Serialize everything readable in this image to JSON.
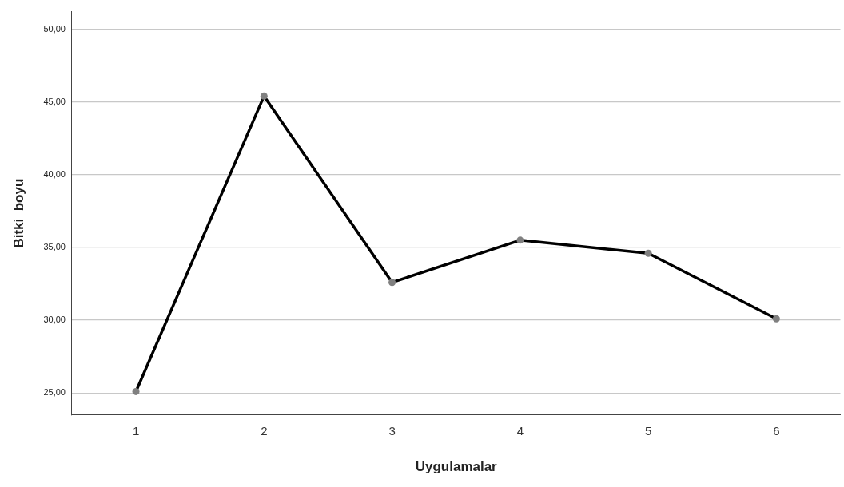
{
  "chart_data": {
    "type": "line",
    "xlabel": "Uygulamalar",
    "ylabel": "Bitki  boyu",
    "categories": [
      "1",
      "2",
      "3",
      "4",
      "5",
      "6"
    ],
    "series": [
      {
        "color": "#000000",
        "values": [
          25.1,
          45.4,
          32.6,
          35.5,
          34.6,
          30.1
        ]
      }
    ],
    "ylim": [
      23.5,
      51.2
    ],
    "yticks": [
      {
        "value": 25,
        "label": "25,00"
      },
      {
        "value": 30,
        "label": "30,00"
      },
      {
        "value": 35,
        "label": "35,00"
      },
      {
        "value": 40,
        "label": "40,00"
      },
      {
        "value": 45,
        "label": "45,00"
      },
      {
        "value": 50,
        "label": "50,00"
      }
    ],
    "grid": "y",
    "legend": false,
    "marker": "circle",
    "line_style": "solid"
  }
}
